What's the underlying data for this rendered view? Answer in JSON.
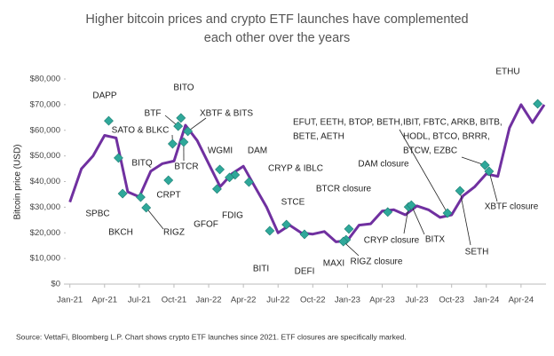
{
  "chart_data": {
    "type": "line",
    "title": [
      "Higher bitcoin prices and crypto ETF launches have complemented",
      "each other over the years"
    ],
    "y_label": "Bitcoin price (USD)",
    "source": "Source: VettaFi, Bloomberg L.P. Chart shows crypto ETF launches since 2021. ETF closures are specifically marked.",
    "xlim": [
      2020.97,
      2024.43
    ],
    "xticks": [
      {
        "value": 2021,
        "label": "Jan-21"
      },
      {
        "value": 2021.25,
        "label": "Apr-21"
      },
      {
        "value": 2021.5,
        "label": "Jul-21"
      },
      {
        "value": 2021.75,
        "label": "Oct-21"
      },
      {
        "value": 2022,
        "label": "Jan-22"
      },
      {
        "value": 2022.25,
        "label": "Apr-22"
      },
      {
        "value": 2022.5,
        "label": "Jul-22"
      },
      {
        "value": 2022.75,
        "label": "Oct-22"
      },
      {
        "value": 2023,
        "label": "Jan-23"
      },
      {
        "value": 2023.25,
        "label": "Apr-23"
      },
      {
        "value": 2023.5,
        "label": "Jul-23"
      },
      {
        "value": 2023.75,
        "label": "Oct-23"
      },
      {
        "value": 2024,
        "label": "Jan-24"
      },
      {
        "value": 2024.25,
        "label": "Apr-24"
      }
    ],
    "ylim": [
      0,
      80000
    ],
    "yticks": [
      {
        "value": 0,
        "label": "$0"
      },
      {
        "value": 10000,
        "label": "$10,000"
      },
      {
        "value": 20000,
        "label": "$20,000"
      },
      {
        "value": 30000,
        "label": "$30,000"
      },
      {
        "value": 40000,
        "label": "$40,000"
      },
      {
        "value": 50000,
        "label": "$50,000"
      },
      {
        "value": 60000,
        "label": "$60,000"
      },
      {
        "value": 70000,
        "label": "$70,000"
      },
      {
        "value": 80000,
        "label": "$80,000"
      }
    ],
    "x": [
      2021,
      2021.083,
      2021.167,
      2021.25,
      2021.333,
      2021.417,
      2021.5,
      2021.583,
      2021.667,
      2021.75,
      2021.833,
      2021.917,
      2022,
      2022.083,
      2022.167,
      2022.25,
      2022.333,
      2022.417,
      2022.5,
      2022.583,
      2022.667,
      2022.75,
      2022.833,
      2022.917,
      2023,
      2023.083,
      2023.167,
      2023.25,
      2023.333,
      2023.417,
      2023.5,
      2023.583,
      2023.667,
      2023.75,
      2023.833,
      2023.917,
      2024,
      2024.083,
      2024.167,
      2024.25,
      2024.333,
      2024.417
    ],
    "series": [
      {
        "name": "Bitcoin price",
        "color": "#7030a0",
        "values": [
          32000,
          45000,
          50000,
          58000,
          57000,
          36000,
          34000,
          44000,
          47000,
          48000,
          62000,
          56000,
          47000,
          38000,
          43000,
          46000,
          38000,
          30000,
          20000,
          23000,
          20000,
          19500,
          20500,
          16500,
          17000,
          23000,
          23500,
          28500,
          29000,
          27000,
          30500,
          29000,
          26000,
          27000,
          34500,
          38000,
          43000,
          42000,
          61000,
          70000,
          63000,
          70000
        ]
      }
    ],
    "marker_color": "#2fa89a",
    "annotations": [
      {
        "label": [
          "DAPP"
        ],
        "x": 2021.28,
        "y": 63700,
        "color": "#222222"
      },
      {
        "label": [
          "BITO"
        ],
        "x": 2021.8,
        "y": 64800,
        "color": "#222222"
      },
      {
        "label": [
          "BTF"
        ],
        "x": 2021.78,
        "y": 61600,
        "color": "#222222"
      },
      {
        "label": [
          "XBTF & BITS"
        ],
        "x": 2021.85,
        "y": 59600,
        "color": "#222222"
      },
      {
        "label": [
          "SATO & BLKC"
        ],
        "x": 2021.74,
        "y": 54700,
        "color": "#222222"
      },
      {
        "label": [
          "BITQ"
        ],
        "x": 2021.35,
        "y": 49200,
        "color": "#222222"
      },
      {
        "label": [
          "BTCR"
        ],
        "x": 2021.82,
        "y": 55400,
        "color": "#222222"
      },
      {
        "label": [
          "CRPT"
        ],
        "x": 2021.71,
        "y": 40500,
        "color": "#222222"
      },
      {
        "label": [
          "WGMI"
        ],
        "x": 2022.08,
        "y": 44700,
        "color": "#222222"
      },
      {
        "label": [
          "DAM"
        ],
        "x": 2022.19,
        "y": 42600,
        "color": "#222222"
      },
      {
        "label": [
          "GFOF"
        ],
        "x": 2022.06,
        "y": 37100,
        "color": "#222222"
      },
      {
        "label": [
          "FDIG"
        ],
        "x": 2022.15,
        "y": 41600,
        "color": "#222222"
      },
      {
        "label": [
          "CRYP & IBLC"
        ],
        "x": 2022.29,
        "y": 39800,
        "color": "#222222"
      },
      {
        "label": [
          "SPBC"
        ],
        "x": 2021.38,
        "y": 35300,
        "color": "#222222"
      },
      {
        "label": [
          "BKCH"
        ],
        "x": 2021.51,
        "y": 33900,
        "color": "#222222"
      },
      {
        "label": [
          "RIGZ"
        ],
        "x": 2021.55,
        "y": 29800,
        "color": "#222222"
      },
      {
        "label": [
          "BITI"
        ],
        "x": 2022.44,
        "y": 20800,
        "color": "#222222"
      },
      {
        "label": [
          "STCE"
        ],
        "x": 2022.56,
        "y": 23200,
        "color": "#222222"
      },
      {
        "label": [
          "DEFI"
        ],
        "x": 2022.69,
        "y": 19400,
        "color": "#222222"
      },
      {
        "label": [
          "MAXI"
        ],
        "x": 2022.99,
        "y": 17300,
        "color": "#222222"
      },
      {
        "label": [
          "BTCR closure"
        ],
        "x": 2023.01,
        "y": 21500,
        "color": "#c00000"
      },
      {
        "label": [
          "RIGZ closure"
        ],
        "x": 2022.97,
        "y": 16600,
        "color": "#c00000"
      },
      {
        "label": [
          "DAM closure"
        ],
        "x": 2023.29,
        "y": 28100,
        "color": "#c00000"
      },
      {
        "label": [
          "CRYP closure"
        ],
        "x": 2023.44,
        "y": 30100,
        "color": "#c00000"
      },
      {
        "label": [
          "BITX"
        ],
        "x": 2023.46,
        "y": 30800,
        "color": "#222222"
      },
      {
        "label": [
          "EFUT, EETH, BTOP, BETH,",
          "BETE, AETH"
        ],
        "x": 2023.72,
        "y": 27700,
        "color": "#222222"
      },
      {
        "label": [
          "IBIT, FBTC, ARKB, BITB,",
          "HODL, BTCO, BRRR,",
          "BTCW, EZBC"
        ],
        "x": 2023.99,
        "y": 46400,
        "color": "#222222"
      },
      {
        "label": [
          "XBTF closure"
        ],
        "x": 2024.02,
        "y": 44000,
        "color": "#c00000"
      },
      {
        "label": [
          "SETH"
        ],
        "x": 2023.81,
        "y": 36400,
        "color": "#222222"
      },
      {
        "label": [
          "ETHU"
        ],
        "x": 2024.37,
        "y": 70300,
        "color": "#222222"
      }
    ]
  }
}
